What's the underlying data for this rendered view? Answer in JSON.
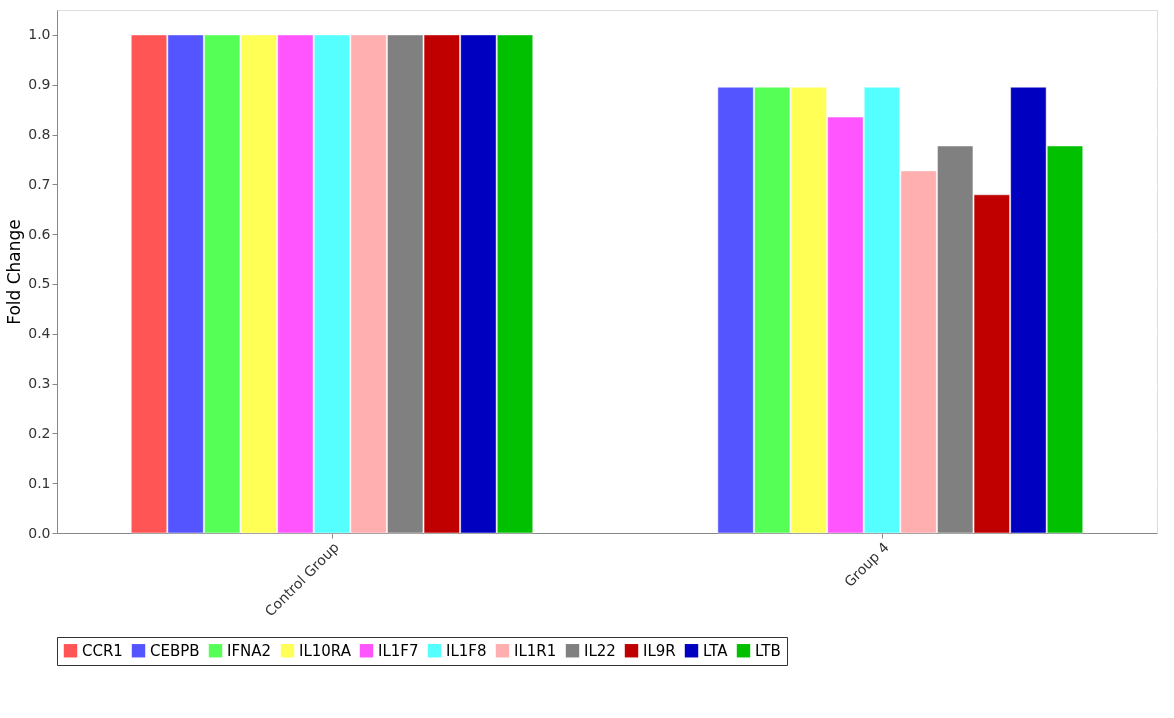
{
  "chart_data": {
    "type": "bar",
    "ylabel": "Fold Change",
    "categories": [
      "Control Group",
      "Group 4"
    ],
    "ylim": [
      0,
      1.05
    ],
    "yticks": [
      {
        "value": 0,
        "label": "0.0"
      },
      {
        "value": 0.1,
        "label": "0.1"
      },
      {
        "value": 0.2,
        "label": "0.2"
      },
      {
        "value": 0.3,
        "label": "0.3"
      },
      {
        "value": 0.4,
        "label": "0.4"
      },
      {
        "value": 0.5,
        "label": "0.5"
      },
      {
        "value": 0.6,
        "label": "0.6"
      },
      {
        "value": 0.7,
        "label": "0.7"
      },
      {
        "value": 0.8,
        "label": "0.8"
      },
      {
        "value": 0.9,
        "label": "0.9"
      },
      {
        "value": 1.0,
        "label": "1.0"
      }
    ],
    "grid": "y",
    "legend": "bottom",
    "series": [
      {
        "name": "CCR1",
        "color": "#ff5555",
        "values": [
          1.0,
          null
        ]
      },
      {
        "name": "CEBPB",
        "color": "#5555ff",
        "values": [
          1.0,
          0.895
        ]
      },
      {
        "name": "IFNA2",
        "color": "#55ff55",
        "values": [
          1.0,
          0.895
        ]
      },
      {
        "name": "IL10RA",
        "color": "#ffff55",
        "values": [
          1.0,
          0.895
        ]
      },
      {
        "name": "IL1F7",
        "color": "#ff55ff",
        "values": [
          1.0,
          0.835
        ]
      },
      {
        "name": "IL1F8",
        "color": "#55ffff",
        "values": [
          1.0,
          0.895
        ]
      },
      {
        "name": "IL1R1",
        "color": "#ffafaf",
        "values": [
          1.0,
          0.727
        ]
      },
      {
        "name": "IL22",
        "color": "#808080",
        "values": [
          1.0,
          0.777
        ]
      },
      {
        "name": "IL9R",
        "color": "#c00000",
        "values": [
          1.0,
          0.679
        ]
      },
      {
        "name": "LTA",
        "color": "#0000c0",
        "values": [
          1.0,
          0.895
        ]
      },
      {
        "name": "LTB",
        "color": "#00c000",
        "values": [
          1.0,
          0.777
        ]
      }
    ]
  }
}
